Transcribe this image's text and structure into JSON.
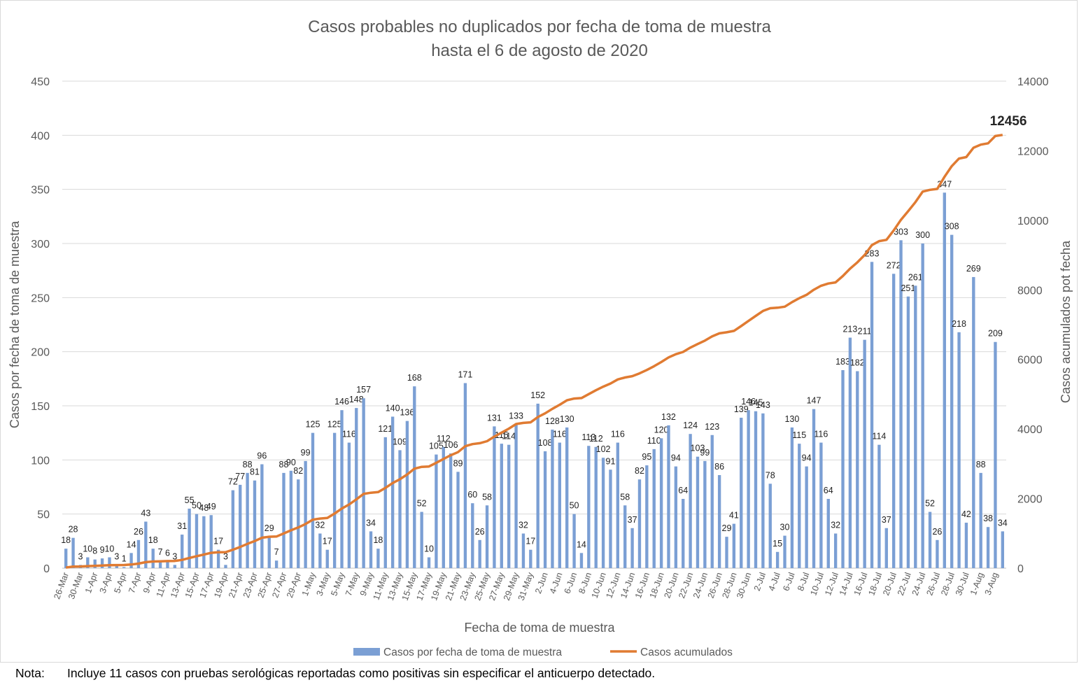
{
  "chart_data": {
    "type": "bar+line",
    "title": [
      "Casos probables no duplicados por fecha de toma de muestra",
      "hasta el 6 de agosto de 2020"
    ],
    "xlabel": "Fecha de toma de muestra",
    "ylabel_left": "Casos por fecha de toma de muestra",
    "ylabel_right": "Casos acumulados pot fecha",
    "ylim_left": [
      0,
      450
    ],
    "yticks_left": [
      0,
      50,
      100,
      150,
      200,
      250,
      300,
      350,
      400,
      450
    ],
    "ylim_right": [
      0,
      14000
    ],
    "yticks_right": [
      0,
      2000,
      4000,
      6000,
      8000,
      10000,
      12000,
      14000
    ],
    "grid": true,
    "legend_position": "bottom",
    "x_tick_labels": [
      "26-Mar",
      "30-Mar",
      "1-Apr",
      "3-Apr",
      "5-Apr",
      "7-Apr",
      "9-Apr",
      "11-Apr",
      "13-Apr",
      "15-Apr",
      "17-Apr",
      "19-Apr",
      "21-Apr",
      "23-Apr",
      "25-Apr",
      "27-Apr",
      "29-Apr",
      "1-May",
      "3-May",
      "5-May",
      "7-May",
      "9-May",
      "11-May",
      "13-May",
      "15-May",
      "17-May",
      "19-May",
      "21-May",
      "23-May",
      "25-May",
      "27-May",
      "29-May",
      "31-May",
      "2-Jun",
      "4-Jun",
      "6-Jun",
      "8-Jun",
      "10-Jun",
      "12-Jun",
      "14-Jun",
      "16-Jun",
      "18-Jun",
      "20-Jun",
      "22-Jun",
      "24-Jun",
      "26-Jun",
      "28-Jun",
      "30-Jun",
      "2-Jul",
      "4-Jul",
      "6-Jul",
      "8-Jul",
      "10-Jul",
      "12-Jul",
      "14-Jul",
      "16-Jul",
      "18-Jul",
      "20-Jul",
      "22-Jul",
      "24-Jul",
      "26-Jul",
      "28-Jul",
      "30-Jul",
      "1-Aug",
      "3-Aug"
    ],
    "bar_values": [
      18,
      28,
      3,
      10,
      8,
      9,
      10,
      3,
      1,
      14,
      26,
      43,
      18,
      7,
      6,
      3,
      31,
      55,
      50,
      48,
      49,
      17,
      3,
      72,
      77,
      88,
      81,
      96,
      29,
      7,
      88,
      90,
      82,
      99,
      125,
      32,
      17,
      125,
      146,
      116,
      148,
      157,
      34,
      18,
      121,
      140,
      109,
      136,
      168,
      52,
      10,
      105,
      112,
      106,
      89,
      171,
      60,
      26,
      58,
      131,
      115,
      114,
      133,
      32,
      17,
      152,
      108,
      128,
      116,
      130,
      50,
      14,
      113,
      112,
      102,
      91,
      116,
      58,
      37,
      82,
      95,
      110,
      120,
      132,
      94,
      64,
      124,
      103,
      99,
      123,
      86,
      29,
      41,
      139,
      146,
      145,
      143,
      78,
      15,
      30,
      130,
      115,
      94,
      147,
      116,
      64,
      32,
      183,
      213,
      182,
      211,
      283,
      114,
      37,
      272,
      303,
      251,
      261,
      300,
      52,
      26,
      347,
      308,
      218,
      42,
      269,
      88,
      38,
      209,
      34
    ],
    "series": [
      {
        "name": "Casos por fecha de toma de muestra",
        "type": "bar",
        "color": "#7b9fd4"
      },
      {
        "name": "Casos acumulados",
        "type": "line",
        "color": "#e07b32",
        "values": [
          18,
          46,
          49,
          59,
          67,
          76,
          86,
          89,
          90,
          104,
          130,
          173,
          191,
          198,
          204,
          207,
          238,
          293,
          343,
          391,
          440,
          457,
          460,
          532,
          609,
          697,
          778,
          874,
          903,
          910,
          998,
          1088,
          1170,
          1269,
          1394,
          1426,
          1443,
          1568,
          1714,
          1830,
          1978,
          2135,
          2169,
          2187,
          2308,
          2448,
          2557,
          2693,
          2861,
          2913,
          2923,
          3028,
          3140,
          3246,
          3335,
          3506,
          3566,
          3592,
          3650,
          3781,
          3896,
          4010,
          4143,
          4175,
          4192,
          4344,
          4452,
          4580,
          4696,
          4826,
          4876,
          4890,
          5003,
          5115,
          5217,
          5308,
          5424,
          5482,
          5519,
          5601,
          5696,
          5806,
          5926,
          6058,
          6152,
          6216,
          6340,
          6443,
          6542,
          6665,
          6751,
          6780,
          6821,
          6960,
          7106,
          7251,
          7394,
          7472,
          7487,
          7517,
          7647,
          7762,
          7856,
          8003,
          8119,
          8183,
          8215,
          8398,
          8611,
          8793,
          9004,
          9287,
          9401,
          9438,
          9710,
          10013,
          10264,
          10525,
          10825,
          10877,
          10903,
          11250,
          11558,
          11776,
          11818,
          12087,
          12175,
          12213,
          12422,
          12456
        ]
      }
    ],
    "final_label": "12456"
  },
  "note": {
    "label": "Nota:",
    "text": "Incluye 11 casos con pruebas serológicas reportadas como positivas sin especificar el anticuerpo detectado."
  }
}
